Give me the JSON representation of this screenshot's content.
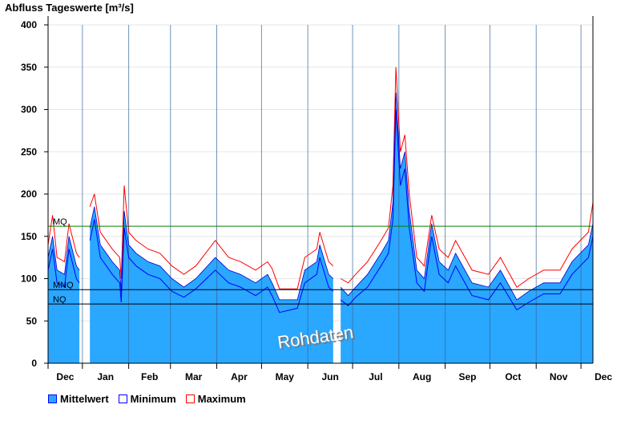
{
  "chart_data": {
    "type": "area",
    "title": "Abfluss Tageswerte [m³/s]",
    "ylim": [
      0,
      400
    ],
    "yticks": [
      0,
      50,
      100,
      150,
      200,
      250,
      300,
      350,
      400
    ],
    "x_unit": "day index from first shown day",
    "months": [
      {
        "label": "Dec",
        "start": 0,
        "end": 23
      },
      {
        "label": "Jan",
        "start": 23,
        "end": 54
      },
      {
        "label": "Feb",
        "start": 54,
        "end": 82
      },
      {
        "label": "Mar",
        "start": 82,
        "end": 113
      },
      {
        "label": "Apr",
        "start": 113,
        "end": 143
      },
      {
        "label": "May",
        "start": 143,
        "end": 174
      },
      {
        "label": "Jun",
        "start": 174,
        "end": 204
      },
      {
        "label": "Jul",
        "start": 204,
        "end": 235
      },
      {
        "label": "Aug",
        "start": 235,
        "end": 266
      },
      {
        "label": "Sep",
        "start": 266,
        "end": 296
      },
      {
        "label": "Oct",
        "start": 296,
        "end": 327
      },
      {
        "label": "Nov",
        "start": 327,
        "end": 357
      },
      {
        "label": "Dec",
        "start": 357,
        "end": 365
      }
    ],
    "x": [
      0,
      3,
      6,
      11,
      14,
      19,
      21,
      22,
      25,
      26,
      28,
      31,
      35,
      43,
      48,
      49,
      51,
      54,
      59,
      67,
      75,
      83,
      91,
      99,
      112,
      121,
      129,
      139,
      147,
      150,
      155,
      167,
      172,
      180,
      182,
      188,
      191,
      192,
      196,
      201,
      206,
      214,
      223,
      228,
      231,
      233,
      236,
      239,
      242,
      247,
      252,
      257,
      262,
      268,
      273,
      284,
      295,
      303,
      314,
      322,
      332,
      343,
      351,
      362,
      365
    ],
    "series": [
      {
        "name": "Mittelwert",
        "color": "#2AA7FF",
        "values": [
          125,
          150,
          110,
          105,
          150,
          115,
          110,
          null,
          115,
          null,
          160,
          185,
          140,
          120,
          110,
          85,
          180,
          140,
          130,
          120,
          115,
          100,
          90,
          100,
          125,
          110,
          105,
          95,
          105,
          95,
          75,
          75,
          110,
          120,
          140,
          105,
          100,
          null,
          90,
          80,
          90,
          105,
          130,
          145,
          190,
          320,
          230,
          250,
          180,
          110,
          100,
          165,
          120,
          110,
          130,
          95,
          90,
          110,
          75,
          85,
          95,
          95,
          120,
          140,
          165
        ]
      },
      {
        "name": "Minimum",
        "color": "#0000FF",
        "values": [
          110,
          135,
          95,
          90,
          135,
          100,
          95,
          null,
          100,
          null,
          145,
          170,
          125,
          105,
          95,
          72,
          160,
          125,
          115,
          105,
          100,
          85,
          78,
          88,
          110,
          95,
          90,
          80,
          90,
          80,
          60,
          65,
          95,
          105,
          125,
          90,
          85,
          null,
          75,
          68,
          78,
          90,
          115,
          130,
          170,
          300,
          210,
          230,
          160,
          95,
          85,
          150,
          105,
          95,
          115,
          80,
          75,
          95,
          63,
          72,
          82,
          82,
          105,
          125,
          150
        ]
      },
      {
        "name": "Maximum",
        "color": "#FF0000",
        "values": [
          140,
          175,
          125,
          120,
          165,
          130,
          125,
          null,
          null,
          null,
          185,
          200,
          155,
          135,
          125,
          100,
          210,
          155,
          145,
          135,
          130,
          115,
          105,
          115,
          145,
          125,
          120,
          110,
          120,
          112,
          88,
          88,
          125,
          135,
          155,
          120,
          115,
          null,
          100,
          95,
          105,
          120,
          145,
          160,
          210,
          350,
          250,
          270,
          200,
          125,
          115,
          175,
          135,
          125,
          145,
          110,
          105,
          125,
          90,
          100,
          110,
          110,
          135,
          155,
          190
        ]
      }
    ],
    "reference_lines": [
      {
        "label": "MQ",
        "value": 162,
        "color": "#008000"
      },
      {
        "label": "MNQ",
        "value": 87,
        "color": "#000000"
      },
      {
        "label": "NQ",
        "value": 70,
        "color": "#000000"
      }
    ],
    "annotation": "Rohdaten",
    "legend": [
      "Mittelwert",
      "Minimum",
      "Maximum"
    ],
    "legend_position": "bottom-left"
  }
}
